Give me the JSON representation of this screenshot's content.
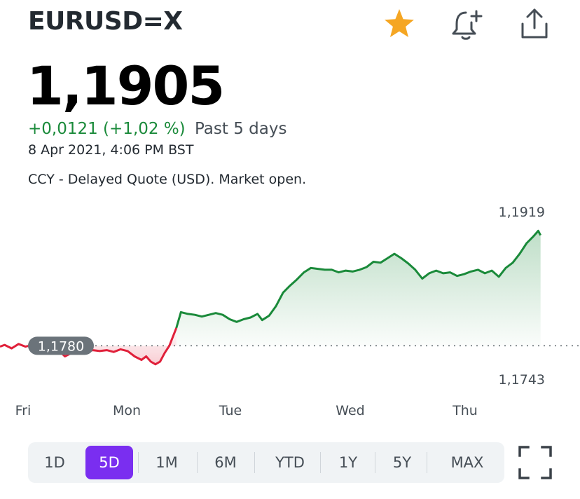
{
  "header": {
    "symbol": "EURUSD=X",
    "icons": [
      "star-icon",
      "bell-plus-icon",
      "share-icon"
    ]
  },
  "quote": {
    "price": "1,1905",
    "change": "+0,0121 (+1,02 %)",
    "period": "Past 5 days",
    "timestamp": "8 Apr 2021, 4:06 PM BST",
    "note": "CCY - Delayed Quote (USD). Market open."
  },
  "colors": {
    "up": "#1a8a3a",
    "down": "#e0203a",
    "star": "#f5a623",
    "active_range": "#7a2ef0"
  },
  "chart_data": {
    "type": "line",
    "days": [
      "Fri",
      "Mon",
      "Tue",
      "Wed",
      "Thu"
    ],
    "reference": {
      "value": 1.178,
      "label": "1,1780"
    },
    "high_label": "1,1919",
    "low_label": "1,1743",
    "ylim": [
      1.1743,
      1.1919
    ],
    "points": [
      [
        0.0,
        1.1779
      ],
      [
        0.02,
        1.1781
      ],
      [
        0.05,
        1.1777
      ],
      [
        0.08,
        1.1782
      ],
      [
        0.11,
        1.1779
      ],
      [
        0.14,
        1.1781
      ],
      [
        0.17,
        1.1783
      ],
      [
        0.19,
        1.1779
      ],
      [
        0.22,
        1.1781
      ],
      [
        0.26,
        1.1773
      ],
      [
        0.28,
        1.1768
      ],
      [
        0.31,
        1.1772
      ],
      [
        0.34,
        1.1774
      ],
      [
        0.37,
        1.1773
      ],
      [
        0.4,
        1.1775
      ],
      [
        0.43,
        1.1774
      ],
      [
        0.46,
        1.1775
      ],
      [
        0.49,
        1.1773
      ],
      [
        0.52,
        1.1776
      ],
      [
        0.55,
        1.1774
      ],
      [
        0.58,
        1.1768
      ],
      [
        0.61,
        1.1764
      ],
      [
        0.63,
        1.1768
      ],
      [
        0.65,
        1.1762
      ],
      [
        0.67,
        1.1759
      ],
      [
        0.69,
        1.1762
      ],
      [
        0.71,
        1.1772
      ],
      [
        0.73,
        1.178
      ],
      [
        0.76,
        1.18
      ],
      [
        0.78,
        1.1818
      ],
      [
        0.81,
        1.1816
      ],
      [
        0.84,
        1.1815
      ],
      [
        0.87,
        1.1813
      ],
      [
        0.9,
        1.1815
      ],
      [
        0.93,
        1.1817
      ],
      [
        0.96,
        1.1815
      ],
      [
        0.99,
        1.181
      ],
      [
        1.02,
        1.1807
      ],
      [
        1.05,
        1.181
      ],
      [
        1.08,
        1.1812
      ],
      [
        1.11,
        1.1816
      ],
      [
        1.13,
        1.1809
      ],
      [
        1.16,
        1.1814
      ],
      [
        1.19,
        1.1825
      ],
      [
        1.22,
        1.184
      ],
      [
        1.25,
        1.1848
      ],
      [
        1.28,
        1.1855
      ],
      [
        1.31,
        1.1863
      ],
      [
        1.34,
        1.1868
      ],
      [
        1.37,
        1.1867
      ],
      [
        1.4,
        1.1866
      ],
      [
        1.43,
        1.1866
      ],
      [
        1.46,
        1.1863
      ],
      [
        1.49,
        1.1865
      ],
      [
        1.52,
        1.1864
      ],
      [
        1.55,
        1.1866
      ],
      [
        1.58,
        1.1869
      ],
      [
        1.61,
        1.1875
      ],
      [
        1.64,
        1.1874
      ],
      [
        1.67,
        1.1879
      ],
      [
        1.7,
        1.1884
      ],
      [
        1.73,
        1.1879
      ],
      [
        1.76,
        1.1873
      ],
      [
        1.79,
        1.1866
      ],
      [
        1.82,
        1.1856
      ],
      [
        1.85,
        1.1862
      ],
      [
        1.88,
        1.1865
      ],
      [
        1.91,
        1.1862
      ],
      [
        1.94,
        1.1863
      ],
      [
        1.97,
        1.1859
      ],
      [
        2.0,
        1.1861
      ],
      [
        2.03,
        1.1864
      ],
      [
        2.06,
        1.1866
      ],
      [
        2.09,
        1.1862
      ],
      [
        2.12,
        1.1865
      ],
      [
        2.15,
        1.1858
      ],
      [
        2.18,
        1.1868
      ],
      [
        2.21,
        1.1874
      ],
      [
        2.24,
        1.1884
      ],
      [
        2.27,
        1.1896
      ],
      [
        2.3,
        1.1904
      ],
      [
        2.32,
        1.191
      ],
      [
        2.33,
        1.1905
      ]
    ]
  },
  "ranges": {
    "items": [
      "1D",
      "5D",
      "1M",
      "6M",
      "YTD",
      "1Y",
      "5Y",
      "MAX"
    ],
    "selected": "5D"
  }
}
